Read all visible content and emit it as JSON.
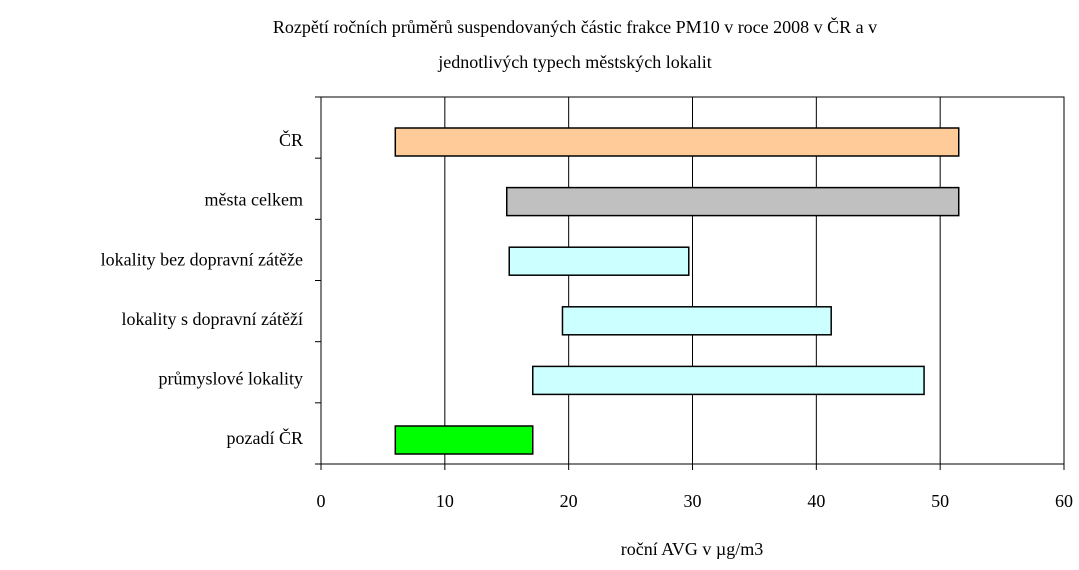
{
  "chart_data": {
    "type": "floating-bar",
    "title": [
      "Rozpětí ročních průměrů suspendovaných částic frakce PM10 v roce 2008 v ČR a v",
      "jednotlivých typech městských lokalit"
    ],
    "xlabel": "roční AVG v µg/m3",
    "categories": [
      "ČR",
      "města celkem",
      "lokality bez dopravní zátěže",
      "lokality s dopravní zátěží",
      "průmyslové lokality",
      "pozadí ČR"
    ],
    "low": [
      6,
      15,
      15.2,
      19.5,
      17.1,
      6
    ],
    "high": [
      51.5,
      51.5,
      29.7,
      41.2,
      48.7,
      17.1
    ],
    "colors": [
      "#ffcc99",
      "#c0c0c0",
      "#ccffff",
      "#ccffff",
      "#ccffff",
      "#00ff00"
    ],
    "xlim": [
      0,
      60
    ],
    "xticks": [
      0,
      10,
      20,
      30,
      40,
      50,
      60
    ],
    "grid": true
  }
}
